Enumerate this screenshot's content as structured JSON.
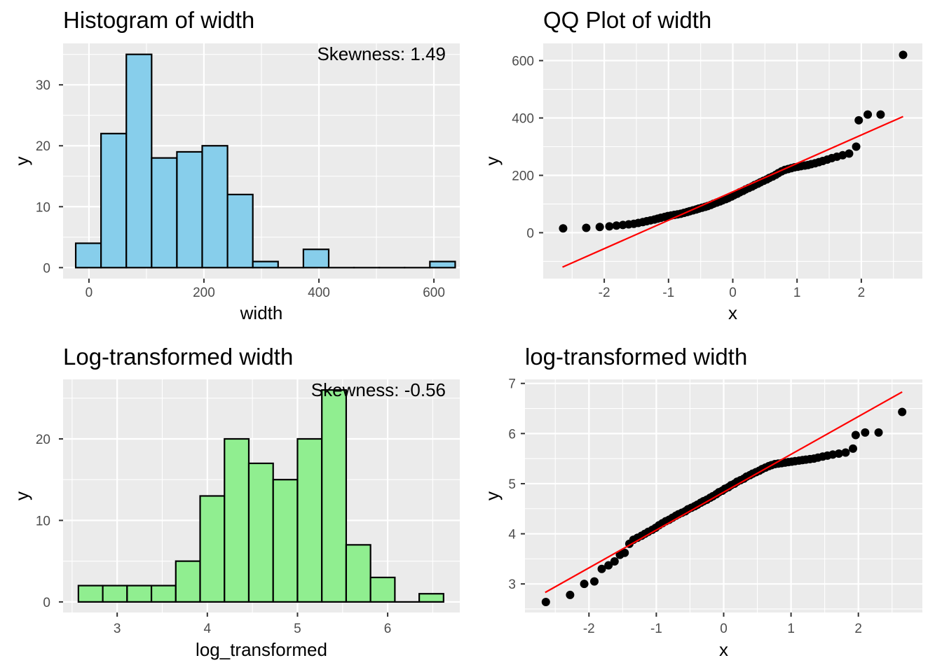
{
  "chart_data": [
    {
      "id": "hist-width",
      "type": "bar",
      "title": "Histogram of width",
      "xlabel": "width",
      "ylabel": "y",
      "annotation": "Skewness: 1.49",
      "xlim": [
        -45,
        645
      ],
      "ylim": [
        -1.8,
        36.8
      ],
      "xticks": [
        0,
        200,
        400,
        600
      ],
      "xtick_labels": [
        "0",
        "200",
        "400",
        "600"
      ],
      "yticks": [
        0,
        10,
        20,
        30
      ],
      "ytick_labels": [
        "0",
        "10",
        "20",
        "30"
      ],
      "bin_edges": [
        -23,
        21,
        65,
        109,
        153,
        197,
        241,
        285,
        329,
        373,
        417,
        461,
        505,
        549,
        593,
        637
      ],
      "values": [
        4,
        22,
        35,
        18,
        19,
        20,
        12,
        1,
        0,
        3,
        0,
        0,
        0,
        0,
        1
      ],
      "fill": "#87ceeb",
      "stroke": "#000000"
    },
    {
      "id": "qq-width",
      "type": "scatter",
      "title": "QQ Plot of width",
      "xlabel": "x",
      "ylabel": "y",
      "xlim": [
        -2.95,
        2.95
      ],
      "ylim": [
        -160,
        660
      ],
      "xticks": [
        -2,
        -1,
        0,
        1,
        2
      ],
      "xtick_labels": [
        "-2",
        "-1",
        "0",
        "1",
        "2"
      ],
      "yticks": [
        0,
        200,
        400,
        600
      ],
      "ytick_labels": [
        "0",
        "200",
        "400",
        "600"
      ],
      "points": [
        [
          -2.64,
          15
        ],
        [
          -2.28,
          17
        ],
        [
          -2.07,
          20
        ],
        [
          -1.92,
          22
        ],
        [
          -1.81,
          25
        ],
        [
          -1.71,
          27
        ],
        [
          -1.62,
          29
        ],
        [
          -1.54,
          31
        ],
        [
          -1.47,
          34
        ],
        [
          -1.4,
          37
        ],
        [
          -1.34,
          40
        ],
        [
          -1.28,
          43
        ],
        [
          -1.22,
          46
        ],
        [
          -1.17,
          49
        ],
        [
          -1.12,
          52
        ],
        [
          -1.06,
          55
        ],
        [
          -1.01,
          58
        ],
        [
          -0.96,
          60
        ],
        [
          -0.91,
          62
        ],
        [
          -0.86,
          64
        ],
        [
          -0.81,
          66
        ],
        [
          -0.76,
          69
        ],
        [
          -0.71,
          72
        ],
        [
          -0.67,
          75
        ],
        [
          -0.62,
          78
        ],
        [
          -0.57,
          81
        ],
        [
          -0.53,
          84
        ],
        [
          -0.48,
          87
        ],
        [
          -0.43,
          90
        ],
        [
          -0.39,
          93
        ],
        [
          -0.34,
          97
        ],
        [
          -0.3,
          101
        ],
        [
          -0.25,
          105
        ],
        [
          -0.2,
          109
        ],
        [
          -0.16,
          113
        ],
        [
          -0.11,
          117
        ],
        [
          -0.07,
          121
        ],
        [
          -0.02,
          126
        ],
        [
          0.02,
          131
        ],
        [
          0.07,
          136
        ],
        [
          0.11,
          141
        ],
        [
          0.16,
          146
        ],
        [
          0.2,
          151
        ],
        [
          0.25,
          156
        ],
        [
          0.3,
          161
        ],
        [
          0.34,
          166
        ],
        [
          0.39,
          171
        ],
        [
          0.43,
          176
        ],
        [
          0.48,
          181
        ],
        [
          0.53,
          186
        ],
        [
          0.57,
          191
        ],
        [
          0.62,
          196
        ],
        [
          0.67,
          202
        ],
        [
          0.71,
          208
        ],
        [
          0.76,
          214
        ],
        [
          0.81,
          219
        ],
        [
          0.86,
          222
        ],
        [
          0.91,
          225
        ],
        [
          0.96,
          228
        ],
        [
          1.01,
          230
        ],
        [
          1.06,
          232
        ],
        [
          1.12,
          234
        ],
        [
          1.17,
          236
        ],
        [
          1.22,
          239
        ],
        [
          1.28,
          242
        ],
        [
          1.34,
          246
        ],
        [
          1.4,
          250
        ],
        [
          1.47,
          255
        ],
        [
          1.54,
          260
        ],
        [
          1.62,
          265
        ],
        [
          1.71,
          270
        ],
        [
          1.81,
          276
        ],
        [
          1.92,
          300
        ],
        [
          1.96,
          392
        ],
        [
          2.1,
          412
        ],
        [
          2.3,
          412
        ],
        [
          2.65,
          620
        ]
      ],
      "reference_line": {
        "x": [
          -2.65,
          2.65
        ],
        "y": [
          -120,
          405
        ],
        "color": "#ff0000"
      },
      "point_color": "#000000"
    },
    {
      "id": "hist-log",
      "type": "bar",
      "title": "Log-transformed width",
      "xlabel": "log_transformed",
      "ylabel": "y",
      "annotation": "Skewness: -0.56",
      "xlim": [
        2.4,
        6.8
      ],
      "ylim": [
        -1.3,
        27.3
      ],
      "xticks": [
        3,
        4,
        5,
        6
      ],
      "xtick_labels": [
        "3",
        "4",
        "5",
        "6"
      ],
      "yticks": [
        0,
        10,
        20
      ],
      "ytick_labels": [
        "0",
        "10",
        "20"
      ],
      "bin_edges": [
        2.57,
        2.84,
        3.11,
        3.38,
        3.65,
        3.92,
        4.19,
        4.46,
        4.73,
        5.0,
        5.27,
        5.54,
        5.81,
        6.08,
        6.35,
        6.62
      ],
      "values": [
        2,
        2,
        2,
        2,
        5,
        13,
        20,
        17,
        15,
        20,
        26,
        7,
        3,
        0,
        1
      ],
      "fill": "#90ee90",
      "stroke": "#000000"
    },
    {
      "id": "qq-log",
      "type": "scatter",
      "title": "log-transformed width",
      "xlabel": "x",
      "ylabel": "y",
      "xlim": [
        -2.95,
        2.95
      ],
      "ylim": [
        2.43,
        7.08
      ],
      "xticks": [
        -2,
        -1,
        0,
        1,
        2
      ],
      "xtick_labels": [
        "-2",
        "-1",
        "0",
        "1",
        "2"
      ],
      "yticks": [
        3,
        4,
        5,
        6,
        7
      ],
      "ytick_labels": [
        "3",
        "4",
        "5",
        "6",
        "7"
      ],
      "points": [
        [
          -2.64,
          2.64
        ],
        [
          -2.28,
          2.78
        ],
        [
          -2.07,
          3.0
        ],
        [
          -1.92,
          3.05
        ],
        [
          -1.81,
          3.3
        ],
        [
          -1.71,
          3.37
        ],
        [
          -1.62,
          3.45
        ],
        [
          -1.54,
          3.58
        ],
        [
          -1.47,
          3.62
        ],
        [
          -1.4,
          3.8
        ],
        [
          -1.34,
          3.88
        ],
        [
          -1.28,
          3.92
        ],
        [
          -1.22,
          3.96
        ],
        [
          -1.17,
          4.0
        ],
        [
          -1.12,
          4.04
        ],
        [
          -1.06,
          4.08
        ],
        [
          -1.01,
          4.12
        ],
        [
          -0.96,
          4.17
        ],
        [
          -0.91,
          4.21
        ],
        [
          -0.86,
          4.25
        ],
        [
          -0.81,
          4.28
        ],
        [
          -0.76,
          4.32
        ],
        [
          -0.71,
          4.36
        ],
        [
          -0.67,
          4.39
        ],
        [
          -0.62,
          4.42
        ],
        [
          -0.57,
          4.45
        ],
        [
          -0.53,
          4.49
        ],
        [
          -0.48,
          4.52
        ],
        [
          -0.43,
          4.55
        ],
        [
          -0.39,
          4.58
        ],
        [
          -0.34,
          4.62
        ],
        [
          -0.3,
          4.65
        ],
        [
          -0.25,
          4.68
        ],
        [
          -0.2,
          4.72
        ],
        [
          -0.16,
          4.75
        ],
        [
          -0.11,
          4.79
        ],
        [
          -0.07,
          4.83
        ],
        [
          -0.02,
          4.86
        ],
        [
          0.02,
          4.9
        ],
        [
          0.07,
          4.93
        ],
        [
          0.11,
          4.97
        ],
        [
          0.16,
          5.0
        ],
        [
          0.2,
          5.04
        ],
        [
          0.25,
          5.07
        ],
        [
          0.3,
          5.1
        ],
        [
          0.34,
          5.14
        ],
        [
          0.39,
          5.17
        ],
        [
          0.43,
          5.2
        ],
        [
          0.48,
          5.23
        ],
        [
          0.53,
          5.26
        ],
        [
          0.57,
          5.29
        ],
        [
          0.62,
          5.32
        ],
        [
          0.67,
          5.35
        ],
        [
          0.71,
          5.37
        ],
        [
          0.76,
          5.39
        ],
        [
          0.81,
          5.4
        ],
        [
          0.86,
          5.41
        ],
        [
          0.91,
          5.42
        ],
        [
          0.96,
          5.43
        ],
        [
          1.01,
          5.44
        ],
        [
          1.06,
          5.45
        ],
        [
          1.12,
          5.46
        ],
        [
          1.17,
          5.47
        ],
        [
          1.22,
          5.48
        ],
        [
          1.28,
          5.49
        ],
        [
          1.34,
          5.5
        ],
        [
          1.4,
          5.52
        ],
        [
          1.47,
          5.54
        ],
        [
          1.54,
          5.56
        ],
        [
          1.62,
          5.58
        ],
        [
          1.71,
          5.6
        ],
        [
          1.81,
          5.62
        ],
        [
          1.92,
          5.7
        ],
        [
          1.96,
          5.97
        ],
        [
          2.1,
          6.02
        ],
        [
          2.3,
          6.02
        ],
        [
          2.65,
          6.43
        ]
      ],
      "reference_line": {
        "x": [
          -2.65,
          2.65
        ],
        "y": [
          2.83,
          6.83
        ],
        "color": "#ff0000"
      },
      "point_color": "#000000"
    }
  ]
}
